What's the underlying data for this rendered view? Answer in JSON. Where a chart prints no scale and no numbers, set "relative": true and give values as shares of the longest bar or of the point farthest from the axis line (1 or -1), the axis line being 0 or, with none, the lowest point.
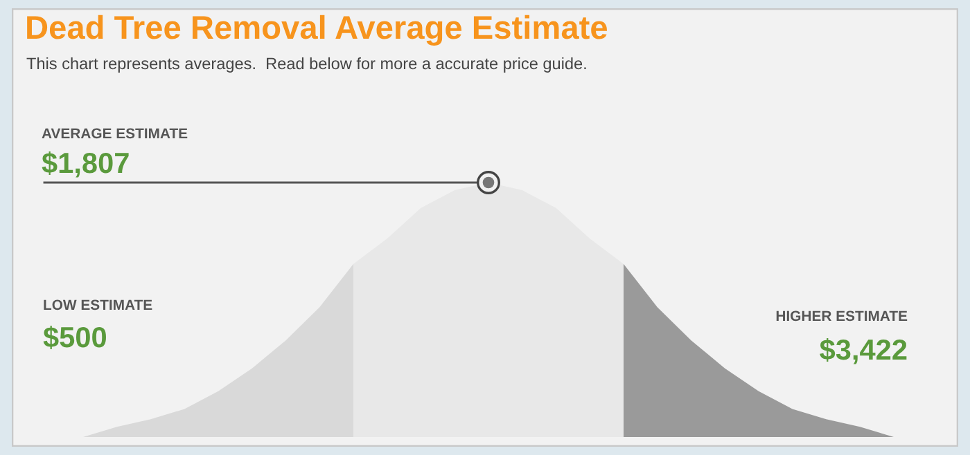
{
  "chart_data": {
    "type": "area",
    "relative": true,
    "title": "Dead Tree Removal Average Estimate",
    "subtitle": "This chart represents averages.  Read below for more a accurate price guide.",
    "annotations": [
      "AVERAGE ESTIMATE",
      "$1,807",
      "LOW ESTIMATE",
      "$500",
      "HIGHER ESTIMATE",
      "$3,422"
    ],
    "categories": [
      null,
      null,
      null,
      null,
      null,
      null,
      null,
      null,
      null,
      null,
      null,
      null,
      null,
      null,
      null,
      null,
      null,
      null,
      null,
      null,
      null,
      null,
      null,
      null,
      null
    ],
    "series": [
      {
        "color": "#d9d9d9",
        "values": [
          0,
          0.04,
          0.07,
          0.11,
          0.18,
          0.27,
          0.38,
          0.51,
          0.68,
          null,
          null,
          null,
          null,
          null,
          null,
          null,
          null,
          null,
          null,
          null,
          null,
          null,
          null,
          null,
          null
        ]
      },
      {
        "color": "#e8e8e8",
        "values": [
          null,
          null,
          null,
          null,
          null,
          null,
          null,
          null,
          0.68,
          0.78,
          0.9,
          0.97,
          1,
          0.97,
          0.9,
          0.78,
          0.68,
          null,
          null,
          null,
          null,
          null,
          null,
          null,
          null
        ]
      },
      {
        "color": "#9a9a9a",
        "values": [
          null,
          null,
          null,
          null,
          null,
          null,
          null,
          null,
          null,
          null,
          null,
          null,
          null,
          null,
          null,
          null,
          0.68,
          0.51,
          0.38,
          0.27,
          0.18,
          0.11,
          0.07,
          0.04,
          0
        ]
      }
    ]
  }
}
